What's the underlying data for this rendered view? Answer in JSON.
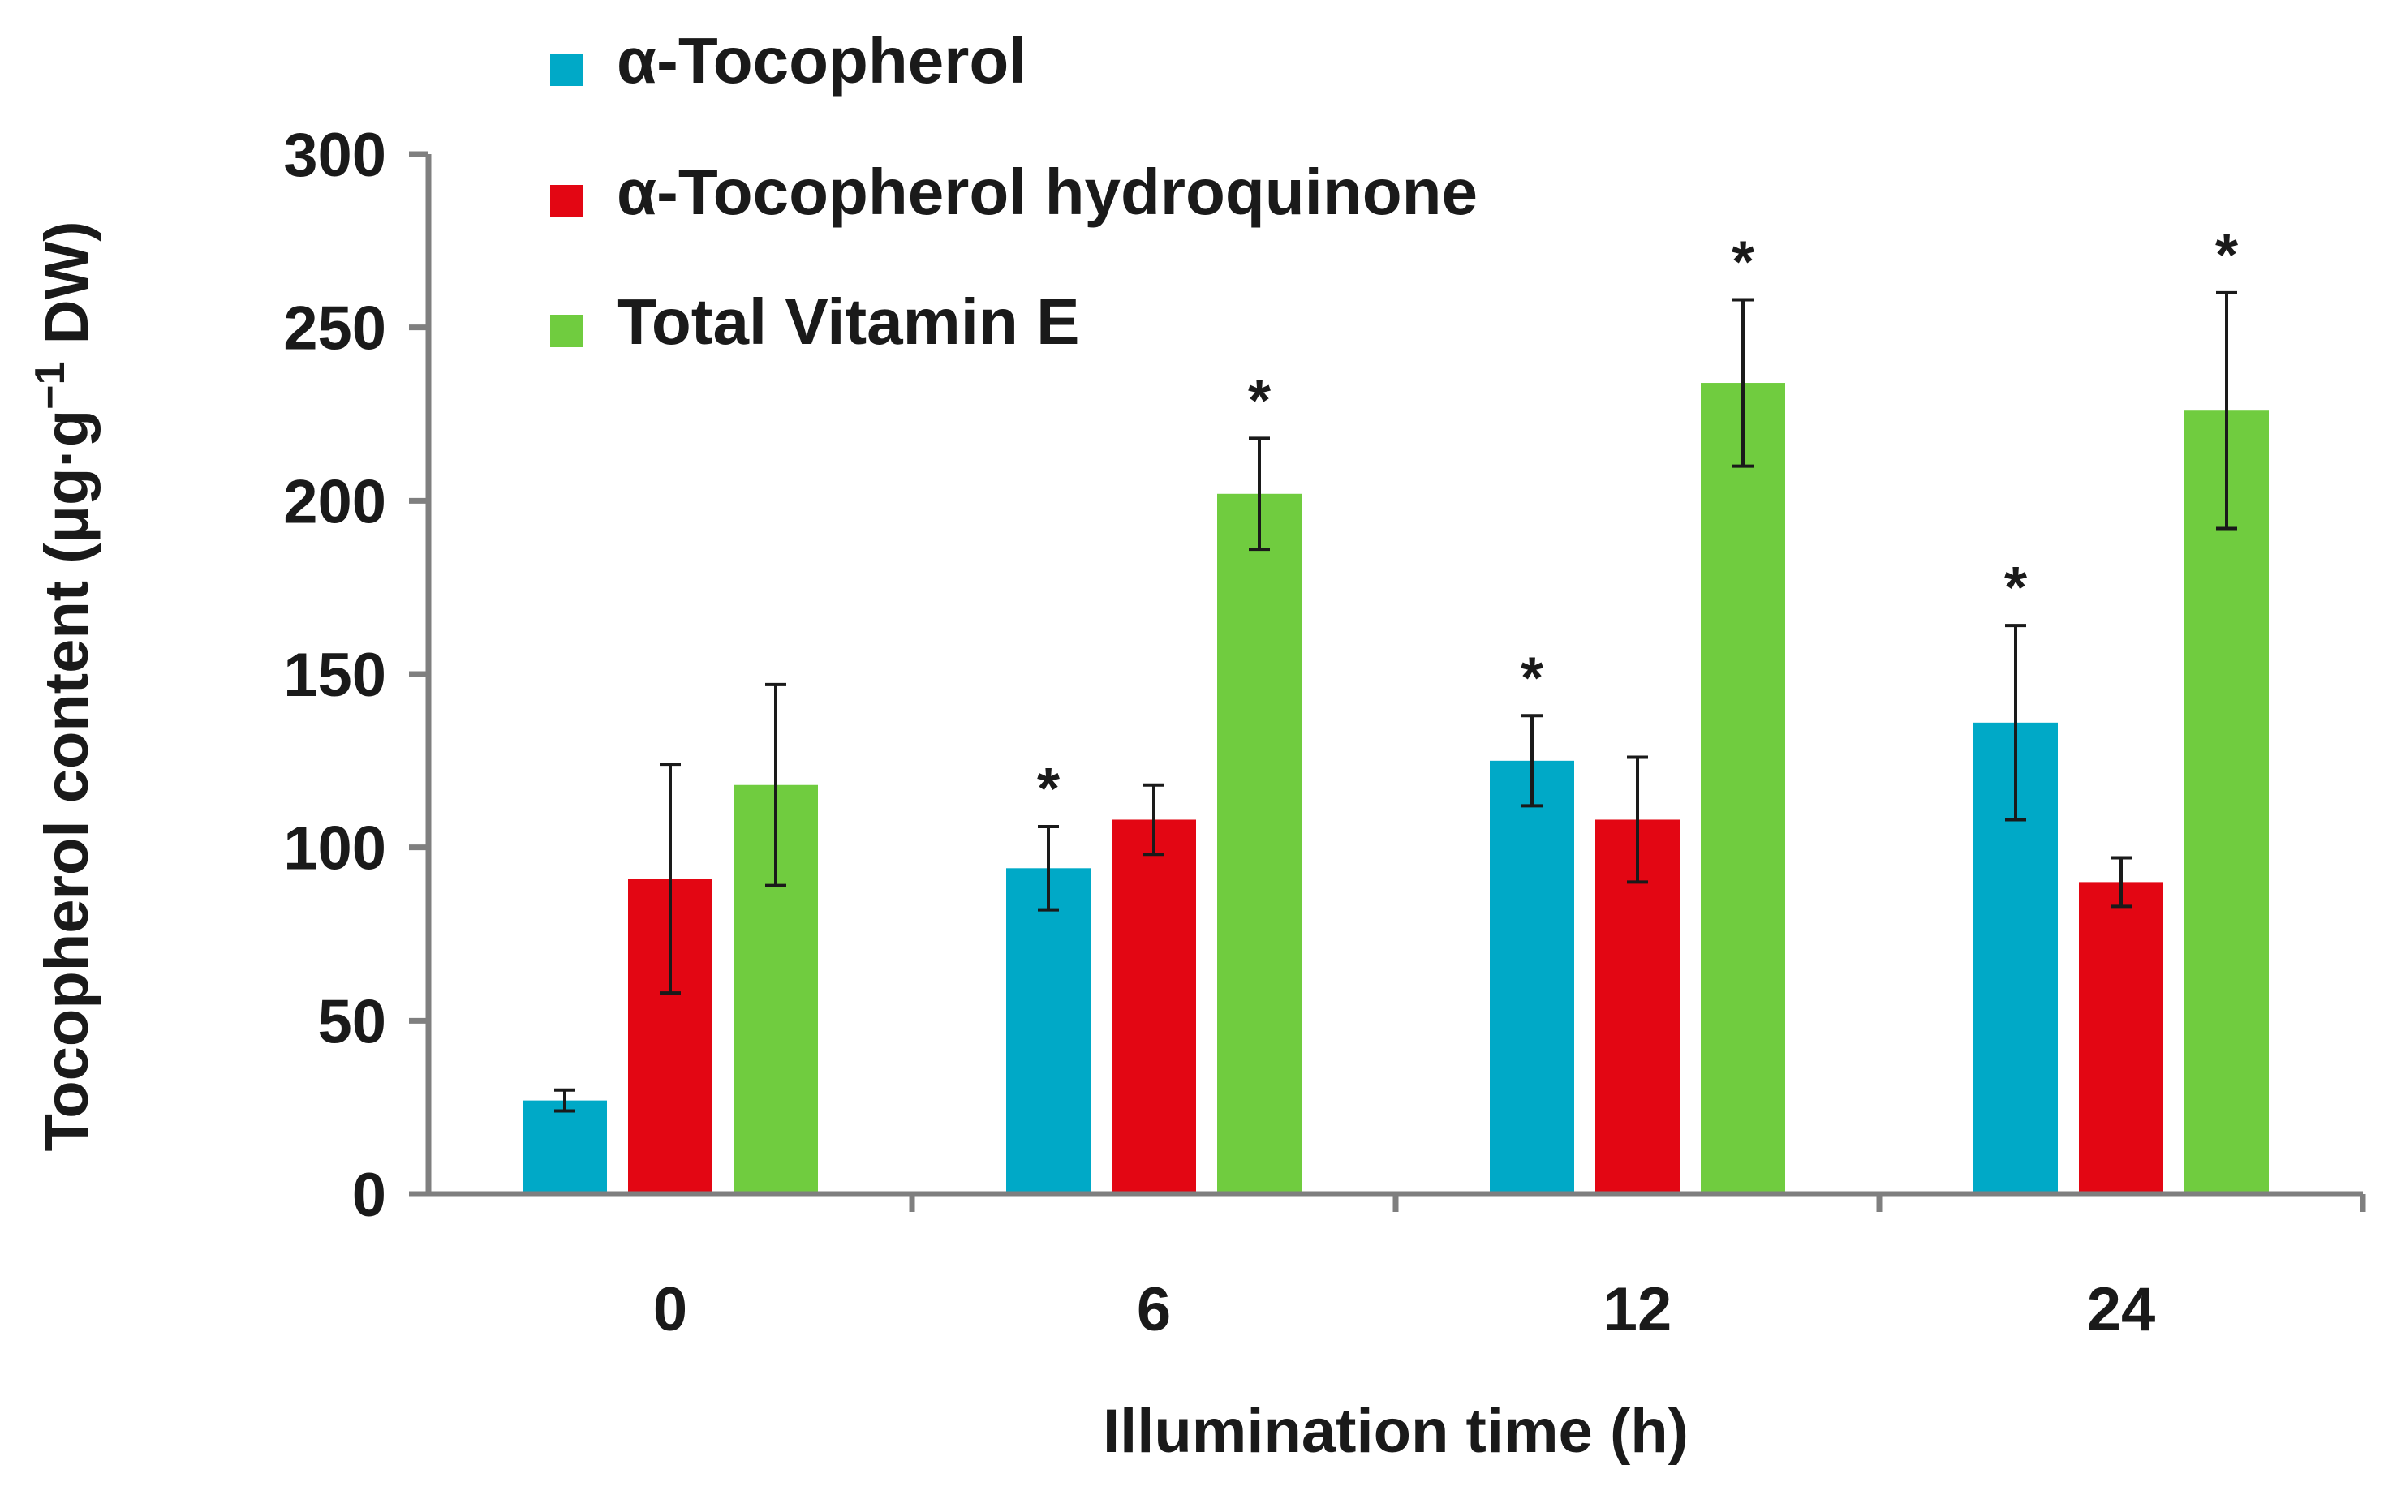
{
  "chart_data": {
    "type": "bar",
    "xlabel": "Illumination time (h)",
    "ylabel": "Tocopherol content (μg·g",
    "ylabel_superscript": "−1",
    "ylabel_suffix": " DW)",
    "categories": [
      "0",
      "6",
      "12",
      "24"
    ],
    "ylim": [
      0,
      300
    ],
    "yticks": [
      "0",
      "50",
      "100",
      "150",
      "200",
      "250",
      "300"
    ],
    "grid": false,
    "legend_position": "top-left",
    "significance_marker": "*",
    "series": [
      {
        "name": "α-Tocopherol",
        "color": "#00a9c7",
        "values": [
          27,
          94,
          125,
          136
        ],
        "errors": [
          3,
          12,
          13,
          28
        ],
        "significant": [
          false,
          true,
          true,
          true
        ]
      },
      {
        "name": "α-Tocopherol hydroquinone",
        "color": "#e30613",
        "values": [
          91,
          108,
          108,
          90
        ],
        "errors": [
          33,
          10,
          18,
          7
        ],
        "significant": [
          false,
          false,
          false,
          false
        ]
      },
      {
        "name": "Total Vitamin E",
        "color": "#70cc3f",
        "values": [
          118,
          202,
          234,
          226
        ],
        "errors": [
          29,
          16,
          24,
          34
        ],
        "significant": [
          false,
          true,
          true,
          true
        ]
      }
    ]
  }
}
